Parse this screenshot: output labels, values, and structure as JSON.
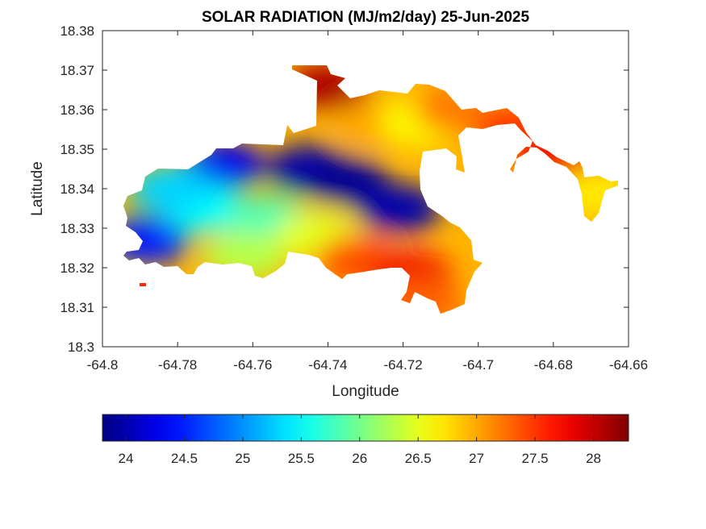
{
  "chart_data": {
    "type": "heatmap",
    "title": "SOLAR RADIATION (MJ/m2/day) 25-Jun-2025",
    "xlabel": "Longitude",
    "ylabel": "Latitude",
    "xlim": [
      -64.8,
      -64.66
    ],
    "ylim": [
      18.3,
      18.38
    ],
    "xticks": [
      "-64.8",
      "-64.78",
      "-64.76",
      "-64.74",
      "-64.72",
      "-64.7",
      "-64.68",
      "-64.66"
    ],
    "yticks": [
      "18.3",
      "18.31",
      "18.32",
      "18.33",
      "18.34",
      "18.35",
      "18.36",
      "18.37",
      "18.38"
    ],
    "colormap": "jet",
    "colorbar": {
      "orientation": "horizontal",
      "placement": "bottom",
      "range": [
        23.8,
        28.3
      ],
      "ticks": [
        "24",
        "24.5",
        "25",
        "25.5",
        "26",
        "26.5",
        "27",
        "27.5",
        "28"
      ]
    },
    "regions": [
      {
        "lon": -64.745,
        "lat": 18.345,
        "value": 24.0
      },
      {
        "lon": -64.735,
        "lat": 18.342,
        "value": 23.9
      },
      {
        "lon": -64.721,
        "lat": 18.335,
        "value": 24.0
      },
      {
        "lon": -64.768,
        "lat": 18.346,
        "value": 24.3
      },
      {
        "lon": -64.788,
        "lat": 18.327,
        "value": 24.5
      },
      {
        "lon": -64.773,
        "lat": 18.335,
        "value": 25.5
      },
      {
        "lon": -64.782,
        "lat": 18.34,
        "value": 25.3
      },
      {
        "lon": -64.756,
        "lat": 18.332,
        "value": 25.8
      },
      {
        "lon": -64.762,
        "lat": 18.323,
        "value": 26.3
      },
      {
        "lon": -64.743,
        "lat": 18.328,
        "value": 26.5
      },
      {
        "lon": -64.727,
        "lat": 18.357,
        "value": 27.0
      },
      {
        "lon": -64.715,
        "lat": 18.357,
        "value": 26.6
      },
      {
        "lon": -64.706,
        "lat": 18.36,
        "value": 27.2
      },
      {
        "lon": -64.74,
        "lat": 18.366,
        "value": 28.1
      },
      {
        "lon": -64.732,
        "lat": 18.322,
        "value": 27.4
      },
      {
        "lon": -64.718,
        "lat": 18.318,
        "value": 27.8
      },
      {
        "lon": -64.715,
        "lat": 18.311,
        "value": 27.3
      },
      {
        "lon": -64.69,
        "lat": 18.355,
        "value": 27.5
      },
      {
        "lon": -64.678,
        "lat": 18.347,
        "value": 27.8
      },
      {
        "lon": -64.669,
        "lat": 18.339,
        "value": 26.7
      }
    ]
  }
}
